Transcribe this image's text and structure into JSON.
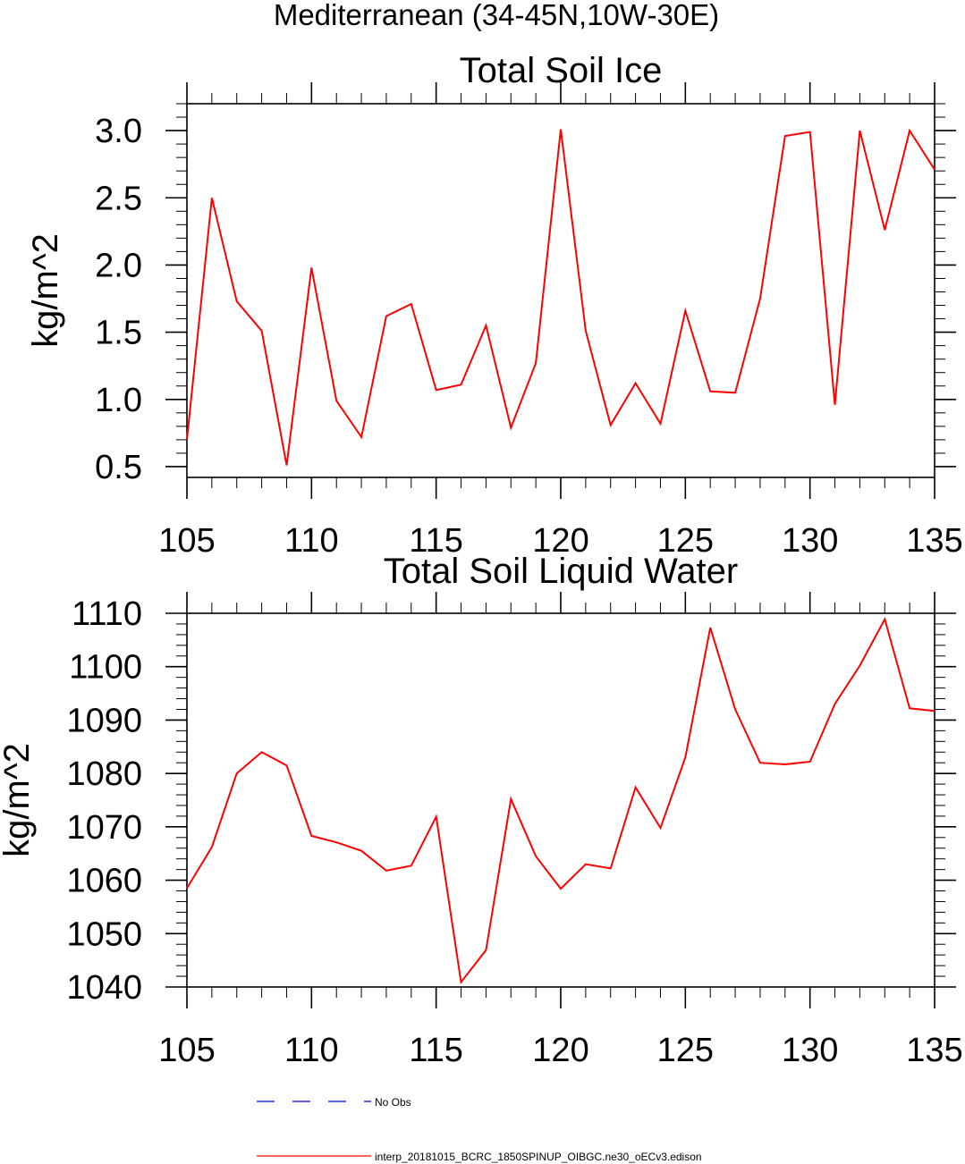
{
  "figure": {
    "suptitle": "Mediterranean (34-45N,10W-30E)",
    "series_color": "#ff0000",
    "obs_color": "#0000cc"
  },
  "chart_data": [
    {
      "type": "line",
      "title": "Total Soil Ice",
      "xlabel": "",
      "ylabel": "kg/m^2",
      "xlim": [
        105,
        135
      ],
      "ylim": [
        0.42,
        3.2
      ],
      "xticks": [
        105,
        110,
        115,
        120,
        125,
        130,
        135
      ],
      "yticks": [
        0.5,
        1.0,
        1.5,
        2.0,
        2.5,
        3.0
      ],
      "ytick_labels": [
        "0.5",
        "1.0",
        "1.5",
        "2.0",
        "2.5",
        "3.0"
      ],
      "grid": false,
      "x": [
        105,
        106,
        107,
        108,
        109,
        110,
        111,
        112,
        113,
        114,
        115,
        116,
        117,
        118,
        119,
        120,
        121,
        122,
        123,
        124,
        125,
        126,
        127,
        128,
        129,
        130,
        131,
        132,
        133,
        134,
        135
      ],
      "series": [
        {
          "name": "interp_20181015_BCRC_1850SPINUP_OIBGC.ne30_oECv3.edison",
          "color": "#ff0000",
          "values": [
            0.7,
            2.5,
            1.73,
            1.51,
            0.51,
            1.98,
            0.99,
            0.72,
            1.62,
            1.71,
            1.07,
            1.11,
            1.55,
            0.79,
            1.27,
            3.01,
            1.51,
            0.81,
            1.12,
            0.82,
            1.66,
            1.06,
            1.05,
            1.75,
            2.96,
            2.99,
            0.96,
            3.0,
            2.26,
            3.0,
            2.71
          ]
        }
      ]
    },
    {
      "type": "line",
      "title": "Total Soil Liquid Water",
      "xlabel": "",
      "ylabel": "kg/m^2",
      "xlim": [
        105,
        135
      ],
      "ylim": [
        1040,
        1110
      ],
      "xticks": [
        105,
        110,
        115,
        120,
        125,
        130,
        135
      ],
      "yticks": [
        1040,
        1050,
        1060,
        1070,
        1080,
        1090,
        1100,
        1110
      ],
      "ytick_labels": [
        "1040",
        "1050",
        "1060",
        "1070",
        "1080",
        "1090",
        "1100",
        "1110"
      ],
      "grid": false,
      "x": [
        105,
        106,
        107,
        108,
        109,
        110,
        111,
        112,
        113,
        114,
        115,
        116,
        117,
        118,
        119,
        120,
        121,
        122,
        123,
        124,
        125,
        126,
        127,
        128,
        129,
        130,
        131,
        132,
        133,
        134,
        135
      ],
      "series": [
        {
          "name": "interp_20181015_BCRC_1850SPINUP_OIBGC.ne30_oECv3.edison",
          "color": "#ff0000",
          "values": [
            1058.5,
            1066.2,
            1080.0,
            1084.0,
            1081.5,
            1068.3,
            1067.1,
            1065.5,
            1061.8,
            1062.7,
            1071.9,
            1040.9,
            1046.9,
            1075.2,
            1064.5,
            1058.4,
            1063.0,
            1062.2,
            1077.4,
            1069.8,
            1083.0,
            1107.3,
            1092.0,
            1082.0,
            1081.7,
            1082.2,
            1093.0,
            1100.2,
            1108.9,
            1092.2,
            1091.7
          ]
        }
      ]
    }
  ],
  "legend": {
    "placement": "bottom",
    "entries": [
      {
        "label": "No Obs",
        "color": "#0000cc",
        "style": "dashed"
      },
      {
        "label": "interp_20181015_BCRC_1850SPINUP_OIBGC.ne30_oECv3.edison",
        "color": "#ff0000",
        "style": "solid"
      }
    ]
  }
}
